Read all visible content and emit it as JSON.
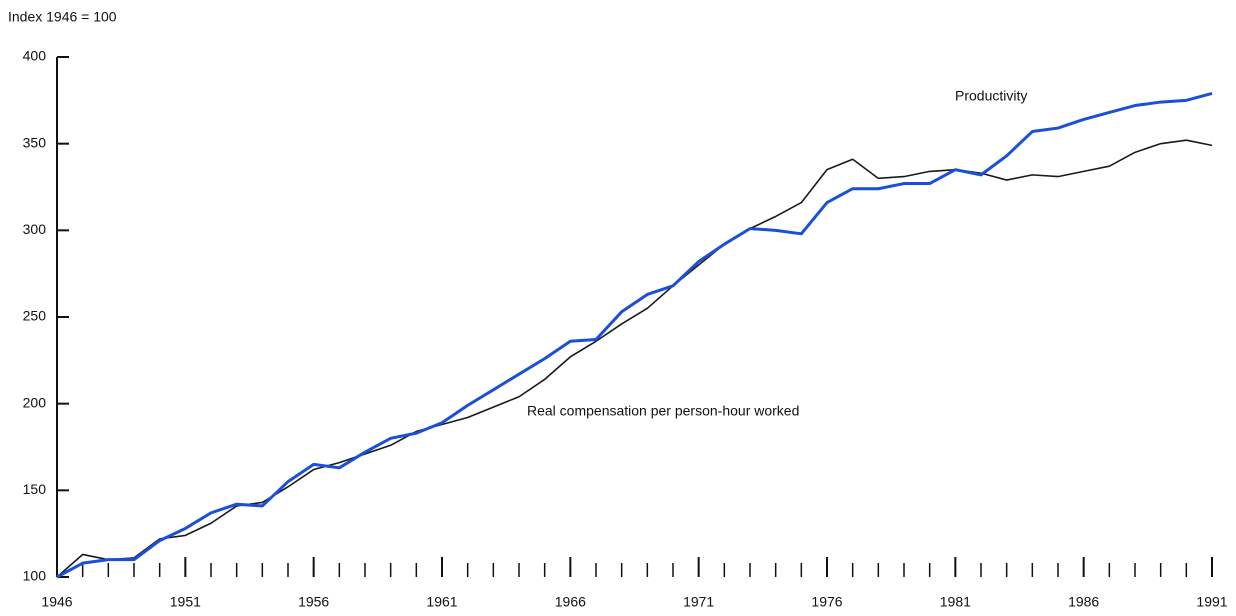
{
  "chart_data": {
    "type": "line",
    "y_label": "Index 1946 = 100",
    "x": [
      1946,
      1947,
      1948,
      1949,
      1950,
      1951,
      1952,
      1953,
      1954,
      1955,
      1956,
      1957,
      1958,
      1959,
      1960,
      1961,
      1962,
      1963,
      1964,
      1965,
      1966,
      1967,
      1968,
      1969,
      1970,
      1971,
      1972,
      1973,
      1974,
      1975,
      1976,
      1977,
      1978,
      1979,
      1980,
      1981,
      1982,
      1983,
      1984,
      1985,
      1986,
      1987,
      1988,
      1989,
      1990,
      1991
    ],
    "series": [
      {
        "name": "Productivity",
        "color": "#1a4fd8",
        "values": [
          100,
          108,
          110,
          110,
          121,
          128,
          137,
          142,
          141,
          155,
          165,
          163,
          172,
          180,
          183,
          189,
          199,
          208,
          217,
          226,
          236,
          237,
          253,
          263,
          268,
          282,
          292,
          301,
          300,
          298,
          316,
          324,
          324,
          327,
          327,
          335,
          332,
          343,
          357,
          359,
          364,
          368,
          372,
          374,
          375,
          379
        ]
      },
      {
        "name": "Real compensation per person-hour worked",
        "color": "#1a1a1a",
        "values": [
          100,
          113,
          110,
          111,
          122,
          124,
          131,
          141,
          143,
          152,
          162,
          166,
          171,
          176,
          184,
          188,
          192,
          198,
          204,
          214,
          227,
          236,
          246,
          255,
          268,
          280,
          292,
          301,
          308,
          316,
          335,
          341,
          330,
          331,
          334,
          335,
          333,
          329,
          332,
          331,
          334,
          337,
          345,
          350,
          352,
          349
        ]
      }
    ],
    "xlim": [
      1946,
      1991
    ],
    "xticks": [
      1946,
      1951,
      1956,
      1961,
      1966,
      1971,
      1976,
      1981,
      1986,
      1991
    ],
    "ylim": [
      100,
      400
    ],
    "yticks": [
      100,
      150,
      200,
      250,
      300,
      350,
      400
    ]
  }
}
